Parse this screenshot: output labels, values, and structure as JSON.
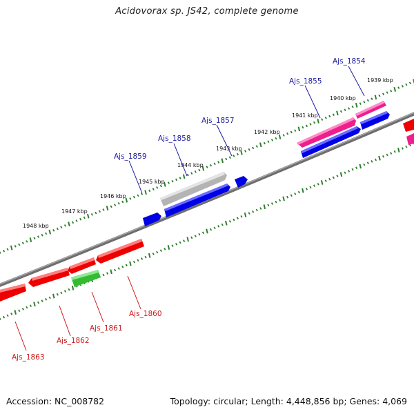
{
  "title": "Acidovorax sp. JS42, complete genome",
  "footer": {
    "accession": "Accession: NC_008782",
    "topology": "Topology: circular; Length: 4,448,856 bp; Genes: 4,069"
  },
  "colors": {
    "backbone": "#808080",
    "ticks": "#2f7d2f",
    "forward_label": "#1a1aa0",
    "reverse_label": "#cc1a1a",
    "blue_gene": "#0000e6",
    "red_gene": "#ee0000",
    "magenta_gene": "#ee1f8c",
    "green_gene": "#33bb33",
    "grey_gene": "#b4b4b4"
  },
  "kbp_labels": [
    "1939 kbp",
    "1940 kbp",
    "1941 kbp",
    "1942 kbp",
    "1943 kbp",
    "1944 kbp",
    "1945 kbp",
    "1946 kbp",
    "1947 kbp",
    "1948 kbp"
  ],
  "forward_genes": [
    "Ajs_1854",
    "Ajs_1855",
    "Ajs_1857",
    "Ajs_1858",
    "Ajs_1859"
  ],
  "reverse_genes": [
    "Ajs_1860",
    "Ajs_1861",
    "Ajs_1862",
    "Ajs_1863"
  ]
}
